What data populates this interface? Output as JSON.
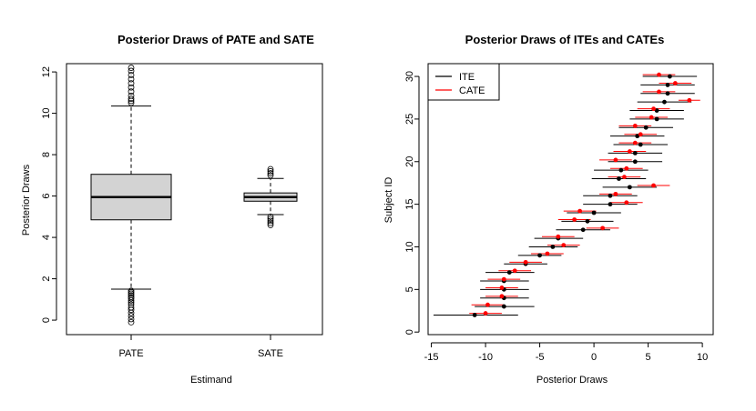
{
  "chart_data": [
    {
      "type": "boxplot",
      "title": "Posterior Draws of PATE and SATE",
      "xlabel": "Estimand",
      "ylabel": "Posterior Draws",
      "ylim": [
        -0.7,
        12.4
      ],
      "yticks": [
        0,
        2,
        4,
        6,
        8,
        10,
        12
      ],
      "categories": [
        "PATE",
        "SATE"
      ],
      "box_color": "#d3d3d3",
      "boxes": [
        {
          "name": "PATE",
          "whisker_low": 1.5,
          "q1": 4.85,
          "median": 5.95,
          "q3": 7.05,
          "whisker_high": 10.35,
          "outliers": [
            -0.1,
            0.05,
            0.2,
            0.35,
            0.5,
            0.62,
            0.75,
            0.85,
            0.95,
            1.05,
            1.12,
            1.2,
            1.28,
            1.35,
            1.42,
            10.5,
            10.6,
            10.7,
            10.85,
            11.05,
            11.25,
            11.45,
            11.65,
            11.85,
            12.05,
            12.2
          ]
        },
        {
          "name": "SATE",
          "whisker_low": 5.1,
          "q1": 5.75,
          "median": 5.95,
          "q3": 6.15,
          "whisker_high": 6.85,
          "outliers": [
            4.6,
            4.7,
            4.8,
            4.9,
            5.0,
            7.0,
            7.1,
            7.2,
            7.3
          ]
        }
      ]
    },
    {
      "type": "forest",
      "title": "Posterior Draws of ITEs and CATEs",
      "xlabel": "Posterior Draws",
      "ylabel": "Subject ID",
      "xlim": [
        -15.3,
        11.0
      ],
      "ylim": [
        -0.3,
        31.5
      ],
      "xticks": [
        -15,
        -10,
        -5,
        0,
        5,
        10
      ],
      "yticks": [
        0,
        5,
        10,
        15,
        20,
        25,
        30
      ],
      "legend": {
        "position": "top-left",
        "entries": [
          {
            "label": "ITE",
            "color": "#000000"
          },
          {
            "label": "CATE",
            "color": "#ff0000"
          }
        ]
      },
      "series": [
        {
          "name": "ITE",
          "color": "#000000",
          "points": [
            {
              "id": 2,
              "est": -11.0,
              "lo": -14.8,
              "hi": -7.0
            },
            {
              "id": 3,
              "est": -8.3,
              "lo": -11.0,
              "hi": -5.5
            },
            {
              "id": 4,
              "est": -8.3,
              "lo": -10.5,
              "hi": -6.0
            },
            {
              "id": 5,
              "est": -8.3,
              "lo": -10.5,
              "hi": -6.0
            },
            {
              "id": 6,
              "est": -8.3,
              "lo": -10.5,
              "hi": -6.0
            },
            {
              "id": 7,
              "est": -7.8,
              "lo": -10.0,
              "hi": -5.5
            },
            {
              "id": 8,
              "est": -6.3,
              "lo": -8.3,
              "hi": -4.3
            },
            {
              "id": 9,
              "est": -5.0,
              "lo": -7.0,
              "hi": -3.0
            },
            {
              "id": 10,
              "est": -3.8,
              "lo": -6.0,
              "hi": -1.5
            },
            {
              "id": 11,
              "est": -3.3,
              "lo": -5.5,
              "hi": -1.0
            },
            {
              "id": 12,
              "est": -1.0,
              "lo": -3.5,
              "hi": 1.5
            },
            {
              "id": 13,
              "est": -0.6,
              "lo": -3.0,
              "hi": 1.8
            },
            {
              "id": 14,
              "est": 0.0,
              "lo": -2.5,
              "hi": 2.5
            },
            {
              "id": 15,
              "est": 1.5,
              "lo": -1.0,
              "hi": 4.0
            },
            {
              "id": 16,
              "est": 1.5,
              "lo": -1.0,
              "hi": 4.0
            },
            {
              "id": 17,
              "est": 3.3,
              "lo": 0.8,
              "hi": 5.8
            },
            {
              "id": 18,
              "est": 2.3,
              "lo": -0.2,
              "hi": 4.8
            },
            {
              "id": 19,
              "est": 2.5,
              "lo": 0.0,
              "hi": 5.0
            },
            {
              "id": 20,
              "est": 3.8,
              "lo": 1.3,
              "hi": 6.3
            },
            {
              "id": 21,
              "est": 3.8,
              "lo": 1.3,
              "hi": 6.3
            },
            {
              "id": 22,
              "est": 4.3,
              "lo": 1.8,
              "hi": 6.8
            },
            {
              "id": 23,
              "est": 4.0,
              "lo": 1.5,
              "hi": 6.5
            },
            {
              "id": 24,
              "est": 4.8,
              "lo": 2.3,
              "hi": 7.3
            },
            {
              "id": 25,
              "est": 5.8,
              "lo": 3.3,
              "hi": 8.3
            },
            {
              "id": 26,
              "est": 5.8,
              "lo": 3.3,
              "hi": 8.3
            },
            {
              "id": 27,
              "est": 6.5,
              "lo": 4.0,
              "hi": 9.0
            },
            {
              "id": 28,
              "est": 6.8,
              "lo": 4.3,
              "hi": 9.3
            },
            {
              "id": 29,
              "est": 6.8,
              "lo": 4.3,
              "hi": 9.3
            },
            {
              "id": 30,
              "est": 7.0,
              "lo": 4.5,
              "hi": 9.5
            }
          ]
        },
        {
          "name": "CATE",
          "color": "#ff0000",
          "points": [
            {
              "id": 2.2,
              "est": -10.0,
              "lo": -11.5,
              "hi": -8.5
            },
            {
              "id": 3.2,
              "est": -9.8,
              "lo": -11.3,
              "hi": -8.3
            },
            {
              "id": 4.2,
              "est": -8.5,
              "lo": -10.0,
              "hi": -7.0
            },
            {
              "id": 5.2,
              "est": -8.5,
              "lo": -10.0,
              "hi": -7.0
            },
            {
              "id": 6.2,
              "est": -8.3,
              "lo": -9.8,
              "hi": -6.8
            },
            {
              "id": 7.2,
              "est": -7.3,
              "lo": -8.8,
              "hi": -5.8
            },
            {
              "id": 8.2,
              "est": -6.3,
              "lo": -7.8,
              "hi": -4.8
            },
            {
              "id": 9.2,
              "est": -4.3,
              "lo": -5.8,
              "hi": -2.8
            },
            {
              "id": 10.2,
              "est": -2.8,
              "lo": -4.3,
              "hi": -1.3
            },
            {
              "id": 11.2,
              "est": -3.3,
              "lo": -4.8,
              "hi": -1.8
            },
            {
              "id": 12.2,
              "est": 0.8,
              "lo": -0.7,
              "hi": 2.3
            },
            {
              "id": 13.2,
              "est": -1.8,
              "lo": -3.3,
              "hi": -0.3
            },
            {
              "id": 14.2,
              "est": -1.3,
              "lo": -2.8,
              "hi": 0.2
            },
            {
              "id": 15.2,
              "est": 3.0,
              "lo": 1.5,
              "hi": 4.5
            },
            {
              "id": 16.2,
              "est": 2.0,
              "lo": 0.5,
              "hi": 3.5
            },
            {
              "id": 17.2,
              "est": 5.5,
              "lo": 4.0,
              "hi": 7.0
            },
            {
              "id": 18.2,
              "est": 2.8,
              "lo": 1.3,
              "hi": 4.3
            },
            {
              "id": 19.2,
              "est": 3.0,
              "lo": 1.5,
              "hi": 4.5
            },
            {
              "id": 20.2,
              "est": 2.0,
              "lo": 0.5,
              "hi": 3.5
            },
            {
              "id": 21.2,
              "est": 3.3,
              "lo": 1.8,
              "hi": 4.8
            },
            {
              "id": 22.2,
              "est": 3.8,
              "lo": 2.3,
              "hi": 5.3
            },
            {
              "id": 23.2,
              "est": 4.3,
              "lo": 2.8,
              "hi": 5.8
            },
            {
              "id": 24.2,
              "est": 3.8,
              "lo": 2.3,
              "hi": 5.3
            },
            {
              "id": 25.2,
              "est": 5.3,
              "lo": 3.8,
              "hi": 6.8
            },
            {
              "id": 26.2,
              "est": 5.5,
              "lo": 4.0,
              "hi": 7.0
            },
            {
              "id": 27.2,
              "est": 8.8,
              "lo": 7.8,
              "hi": 9.8
            },
            {
              "id": 28.2,
              "est": 6.0,
              "lo": 4.5,
              "hi": 7.5
            },
            {
              "id": 29.2,
              "est": 7.5,
              "lo": 6.0,
              "hi": 9.0
            },
            {
              "id": 30.2,
              "est": 6.0,
              "lo": 4.5,
              "hi": 7.5
            }
          ]
        }
      ]
    }
  ]
}
